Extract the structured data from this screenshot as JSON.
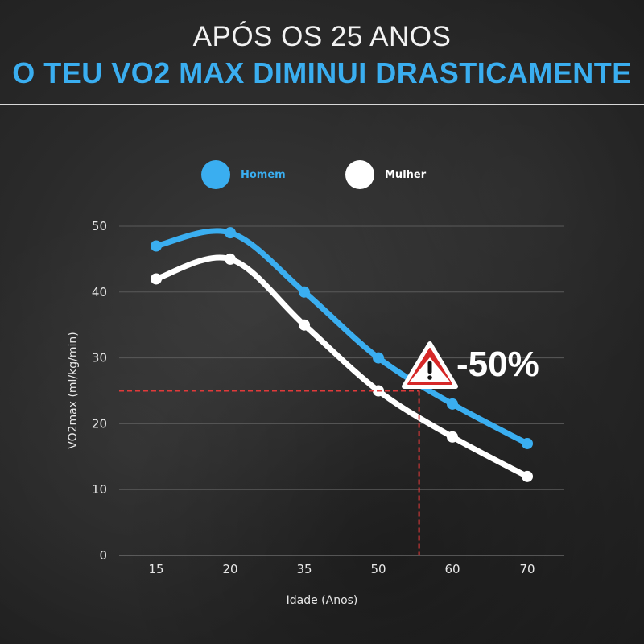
{
  "header": {
    "title": "APÓS OS 25 ANOS",
    "subtitle": "O TEU VO2 MAX DIMINUI DRASTICAMENTE"
  },
  "colors": {
    "accent": "#3aaef0",
    "homem": "#3aaef0",
    "mulher": "#ffffff",
    "reference": "#e03a3a",
    "warning": "#d62828"
  },
  "chart_data": {
    "type": "line",
    "x": [
      "15",
      "20",
      "35",
      "50",
      "60",
      "70"
    ],
    "xlabel": "Idade (Anos)",
    "ylabel": "VO2max (ml/kg/min)",
    "ylim": [
      0,
      50
    ],
    "yticks": [
      0,
      10,
      20,
      30,
      40,
      50
    ],
    "grid": true,
    "legend": "top-left",
    "series": [
      {
        "name": "Homem",
        "values": [
          47,
          49,
          40,
          30,
          23,
          17
        ]
      },
      {
        "name": "Mulher",
        "values": [
          42,
          45,
          35,
          25,
          18,
          12
        ]
      }
    ],
    "reference": {
      "y": 25,
      "x_index": 3.55
    },
    "annotation": {
      "text": "-50%",
      "icon": "warning-triangle-icon"
    }
  }
}
